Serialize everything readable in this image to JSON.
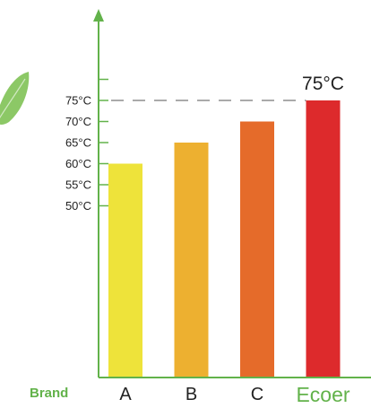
{
  "chart_data": {
    "type": "bar",
    "title": "",
    "xlabel": "Brand",
    "ylabel": "",
    "categories": [
      "A",
      "B",
      "C",
      "Ecoer"
    ],
    "values": [
      60,
      65,
      70,
      75
    ],
    "unit": "°C",
    "ylim": [
      0,
      80
    ],
    "yticks": [
      "50°C",
      "55°C",
      "60°C",
      "65°C",
      "70°C",
      "75°C"
    ],
    "data_labels": [
      {
        "category": "Ecoer",
        "text": "75°C"
      }
    ],
    "reference_line": {
      "value": 75,
      "style": "dashed"
    },
    "grid": false,
    "legend": "none"
  },
  "colors": {
    "axis": "#62b24a",
    "bars": [
      "#eee33a",
      "#edb030",
      "#e56b2a",
      "#dd2a2c"
    ],
    "highlight_label": "#62b24a",
    "leaf": "#8cc866"
  },
  "icons": {
    "leaf": "leaf-icon"
  }
}
